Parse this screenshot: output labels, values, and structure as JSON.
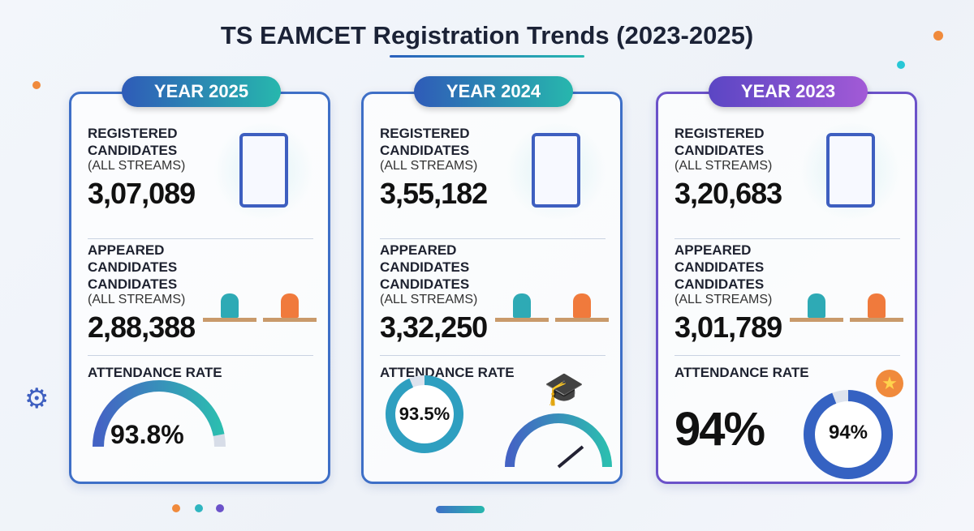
{
  "title": "TS EAMCET Registration Trends (2023-2025)",
  "cards": [
    {
      "year": "YEAR 2025",
      "registered_label": "REGISTERED CANDIDATES",
      "registered_sub": "(ALL STREAMS)",
      "registered": "3,07,089",
      "appeared_label": "APPEARED CANDIDATES CANDIDATES",
      "appeared_sub": "(ALL STREAMS)",
      "appeared": "2,88,388",
      "attendance_label": "ATTENDANCE RATE",
      "attendance": "93.8%",
      "attendance_pct": 93.8,
      "pill_colors": [
        "#2f5bb8",
        "#27b7ad"
      ]
    },
    {
      "year": "YEAR 2024",
      "registered_label": "REGISTERED CANDIDATES",
      "registered_sub": "(ALL STREAMS)",
      "registered": "3,55,182",
      "appeared_label": "APPEARED CANDIDATES CANDIDATES",
      "appeared_sub": "(ALL STREAMS)",
      "appeared": "3,32,250",
      "attendance_label": "ATTENDANCE RATE",
      "attendance": "93.5%",
      "attendance_pct": 93.5,
      "pill_colors": [
        "#2f5bb8",
        "#27b7ad"
      ]
    },
    {
      "year": "YEAR 2023",
      "registered_label": "REGISTERED CANDIDATES",
      "registered_sub": "(ALL STREAMS)",
      "registered": "3,20,683",
      "appeared_label": "APPEARED CANDIDATES CANDIDATES",
      "appeared_sub": "(ALL STREAMS)",
      "appeared": "3,01,789",
      "attendance_label": "ATTENDANCE RATE",
      "attendance": "94%",
      "attendance_ring": "94%",
      "attendance_pct": 94,
      "pill_colors": [
        "#5b46c4",
        "#a25ad6"
      ]
    }
  ]
}
